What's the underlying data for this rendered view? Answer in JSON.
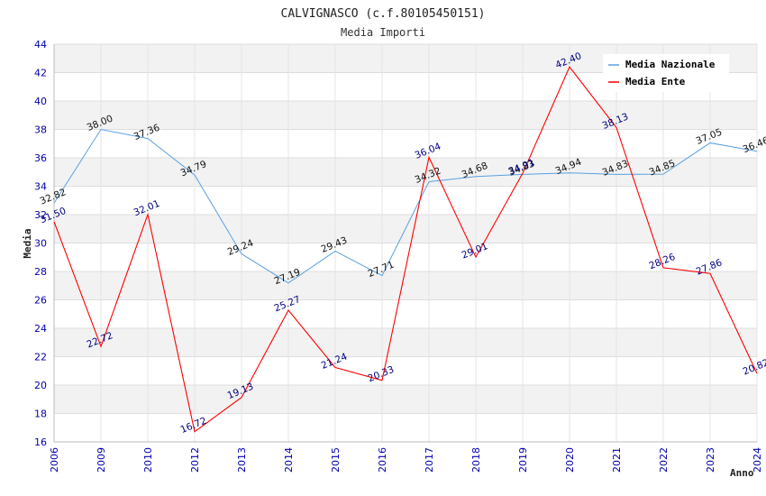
{
  "chart_data": {
    "type": "line",
    "title": "CALVIGNASCO (c.f.80105450151)",
    "subtitle": "Media Importi",
    "xlabel": "Anno",
    "ylabel": "Media",
    "ylim": [
      16,
      44
    ],
    "yticks": [
      16,
      18,
      20,
      22,
      24,
      26,
      28,
      30,
      32,
      34,
      36,
      38,
      40,
      42,
      44
    ],
    "categories": [
      "2006",
      "2009",
      "2010",
      "2012",
      "2013",
      "2014",
      "2015",
      "2016",
      "2017",
      "2018",
      "2019",
      "2020",
      "2021",
      "2022",
      "2023",
      "2024"
    ],
    "series": [
      {
        "name": "Media Nazionale",
        "color": "#5aa0e0",
        "values": [
          32.82,
          38.0,
          37.36,
          34.79,
          29.24,
          27.19,
          29.43,
          27.71,
          34.32,
          34.68,
          34.83,
          34.94,
          34.83,
          34.85,
          37.05,
          36.46
        ],
        "labels": [
          "32.82",
          "38.00",
          "37.36",
          "34.79",
          "29.24",
          "27.19",
          "29.43",
          "27.71",
          "34.32",
          "34.68",
          "34.83",
          "34.94",
          "34.83",
          "34.85",
          "37.05",
          "36.46"
        ]
      },
      {
        "name": "Media Ente",
        "color": "#ff0000",
        "values": [
          31.5,
          22.72,
          32.01,
          16.72,
          19.13,
          25.27,
          21.24,
          20.33,
          36.04,
          29.01,
          34.91,
          42.4,
          38.13,
          28.26,
          27.86,
          20.82
        ],
        "labels": [
          "31.50",
          "22.72",
          "32.01",
          "16.72",
          "19.13",
          "25.27",
          "21.24",
          "20.33",
          "36.04",
          "29.01",
          "34.91",
          "42.40",
          "38.13",
          "28.26",
          "27.86",
          "20.82"
        ]
      }
    ],
    "legend": "top-right",
    "grid": true
  }
}
